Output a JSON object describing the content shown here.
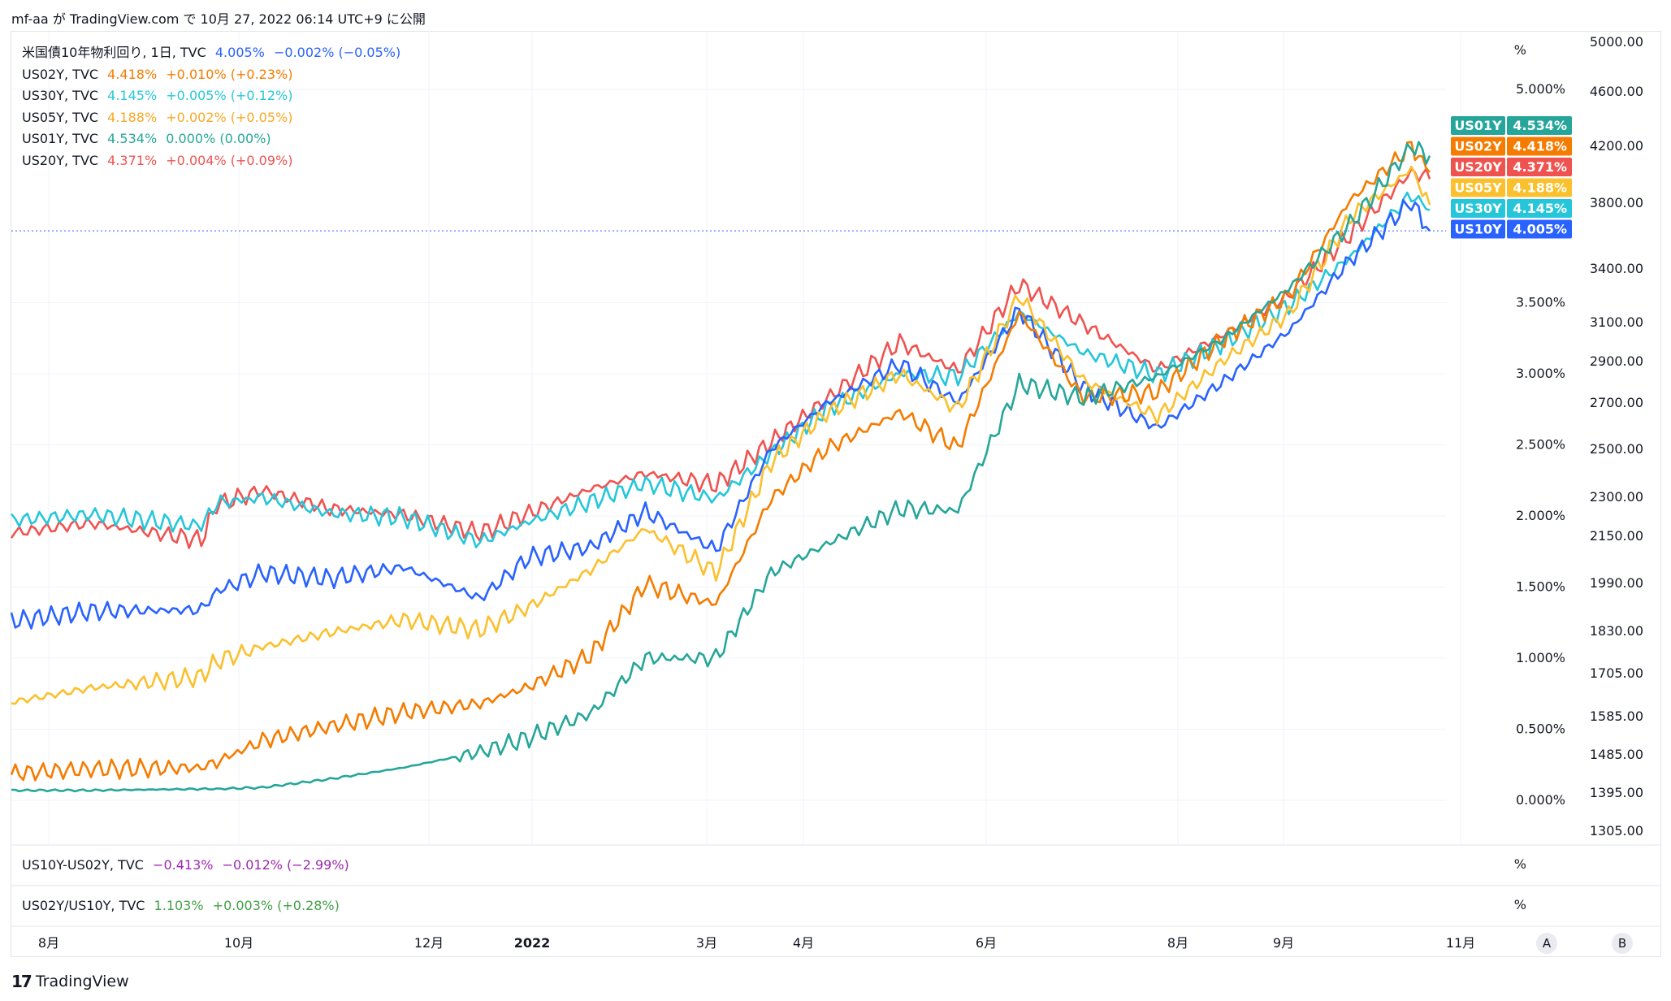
{
  "header": {
    "publish_line": "mf-aa が TradingView.com で 10月 27, 2022 06:14 UTC+9 に公開"
  },
  "legend": [
    {
      "name": "米国債10年物利回り, 1日, TVC",
      "value": "4.005%",
      "change": "−0.002% (−0.05%)",
      "color": "#2962ff"
    },
    {
      "name": "US02Y, TVC",
      "value": "4.418%",
      "change": "+0.010% (+0.23%)",
      "color": "#f57c00"
    },
    {
      "name": "US30Y, TVC",
      "value": "4.145%",
      "change": "+0.005% (+0.12%)",
      "color": "#26c6da"
    },
    {
      "name": "US05Y, TVC",
      "value": "4.188%",
      "change": "+0.002% (+0.05%)",
      "color": "#fbc02d"
    },
    {
      "name": "US01Y, TVC",
      "value": "4.534%",
      "change": "0.000% (0.00%)",
      "color": "#26a69a"
    },
    {
      "name": "US20Y, TVC",
      "value": "4.371%",
      "change": "+0.004% (+0.09%)",
      "color": "#ef5350"
    }
  ],
  "sub_panes": [
    {
      "name": "US10Y-US02Y, TVC",
      "value": "−0.413%",
      "change": "−0.012% (−2.99%)",
      "color": "#9c27b0",
      "unit": "%"
    },
    {
      "name": "US02Y/US10Y, TVC",
      "value": "1.103%",
      "change": "+0.003% (+0.28%)",
      "color": "#43a047",
      "unit": "%"
    }
  ],
  "axis": {
    "unit": "%",
    "btn_a": "A",
    "btn_b": "B",
    "logo": "TradingView",
    "logo_mark": "17"
  },
  "chart_data": {
    "type": "line",
    "x_ticks": [
      "8月",
      "10月",
      "12月",
      "2022",
      "3月",
      "4月",
      "6月",
      "8月",
      "9月",
      "11月"
    ],
    "pct_ticks": [
      {
        "label": "5.000%",
        "v": 5.0
      },
      {
        "label": "3.500%",
        "v": 3.5
      },
      {
        "label": "3.000%",
        "v": 3.0
      },
      {
        "label": "2.500%",
        "v": 2.5
      },
      {
        "label": "2.000%",
        "v": 2.0
      },
      {
        "label": "1.500%",
        "v": 1.5
      },
      {
        "label": "1.000%",
        "v": 1.0
      },
      {
        "label": "0.500%",
        "v": 0.5
      },
      {
        "label": "0.000%",
        "v": 0.0
      }
    ],
    "right_ticks": [
      "5000.00",
      "4600.00",
      "4200.00",
      "3800.00",
      "3400.00",
      "3100.00",
      "2900.00",
      "2700.00",
      "2500.00",
      "2300.00",
      "2150.00",
      "1990.00",
      "1830.00",
      "1705.00",
      "1585.00",
      "1485.00",
      "1395.00",
      "1305.00"
    ],
    "tags": [
      {
        "name": "US01Y",
        "value": "4.534%",
        "color": "#26a69a"
      },
      {
        "name": "US02Y",
        "value": "4.418%",
        "color": "#f57c00"
      },
      {
        "name": "US20Y",
        "value": "4.371%",
        "color": "#ef5350"
      },
      {
        "name": "US05Y",
        "value": "4.188%",
        "color": "#fbc02d"
      },
      {
        "name": "US30Y",
        "value": "4.145%",
        "color": "#26c6da"
      },
      {
        "name": "US10Y",
        "value": "4.005%",
        "color": "#2962ff"
      }
    ],
    "last_value_line": 4.005,
    "x_range": [
      "2021-07-20",
      "2022-10-26"
    ],
    "series": [
      {
        "name": "US20Y",
        "color": "#ef5350",
        "points": [
          [
            "2021-07-20",
            1.88
          ],
          [
            "2021-08-15",
            1.95
          ],
          [
            "2021-09-20",
            1.83
          ],
          [
            "2021-09-25",
            2.08
          ],
          [
            "2021-10-10",
            2.18
          ],
          [
            "2021-11-01",
            2.05
          ],
          [
            "2021-11-25",
            2.01
          ],
          [
            "2021-12-20",
            1.88
          ],
          [
            "2022-01-05",
            2.02
          ],
          [
            "2022-01-25",
            2.19
          ],
          [
            "2022-02-12",
            2.3
          ],
          [
            "2022-03-07",
            2.22
          ],
          [
            "2022-03-25",
            2.52
          ],
          [
            "2022-04-12",
            2.82
          ],
          [
            "2022-05-06",
            3.22
          ],
          [
            "2022-05-25",
            3.02
          ],
          [
            "2022-06-14",
            3.63
          ],
          [
            "2022-07-05",
            3.35
          ],
          [
            "2022-07-29",
            3.03
          ],
          [
            "2022-08-20",
            3.28
          ],
          [
            "2022-09-10",
            3.55
          ],
          [
            "2022-09-30",
            3.98
          ],
          [
            "2022-10-20",
            4.42
          ],
          [
            "2022-10-26",
            4.37
          ]
        ]
      },
      {
        "name": "US30Y",
        "color": "#26c6da",
        "points": [
          [
            "2021-07-20",
            1.97
          ],
          [
            "2021-08-15",
            2.01
          ],
          [
            "2021-09-20",
            1.93
          ],
          [
            "2021-09-25",
            2.09
          ],
          [
            "2021-10-10",
            2.13
          ],
          [
            "2021-11-01",
            2.02
          ],
          [
            "2021-11-25",
            1.99
          ],
          [
            "2021-12-20",
            1.82
          ],
          [
            "2022-01-05",
            1.96
          ],
          [
            "2022-01-25",
            2.1
          ],
          [
            "2022-02-12",
            2.23
          ],
          [
            "2022-03-07",
            2.12
          ],
          [
            "2022-03-25",
            2.44
          ],
          [
            "2022-04-12",
            2.75
          ],
          [
            "2022-05-06",
            3.0
          ],
          [
            "2022-05-25",
            2.98
          ],
          [
            "2022-06-14",
            3.43
          ],
          [
            "2022-07-05",
            3.15
          ],
          [
            "2022-07-29",
            2.99
          ],
          [
            "2022-08-20",
            3.22
          ],
          [
            "2022-09-10",
            3.48
          ],
          [
            "2022-09-30",
            3.82
          ],
          [
            "2022-10-20",
            4.26
          ],
          [
            "2022-10-26",
            4.15
          ]
        ]
      },
      {
        "name": "US10Y",
        "color": "#2962ff",
        "points": [
          [
            "2021-07-20",
            1.26
          ],
          [
            "2021-08-15",
            1.33
          ],
          [
            "2021-09-20",
            1.34
          ],
          [
            "2021-09-25",
            1.47
          ],
          [
            "2021-10-10",
            1.6
          ],
          [
            "2021-11-01",
            1.56
          ],
          [
            "2021-11-25",
            1.64
          ],
          [
            "2021-12-20",
            1.42
          ],
          [
            "2022-01-05",
            1.71
          ],
          [
            "2022-01-25",
            1.78
          ],
          [
            "2022-02-12",
            2.03
          ],
          [
            "2022-03-07",
            1.76
          ],
          [
            "2022-03-25",
            2.47
          ],
          [
            "2022-04-12",
            2.79
          ],
          [
            "2022-05-06",
            3.07
          ],
          [
            "2022-05-25",
            2.8
          ],
          [
            "2022-06-14",
            3.45
          ],
          [
            "2022-07-05",
            2.9
          ],
          [
            "2022-07-29",
            2.62
          ],
          [
            "2022-08-20",
            2.95
          ],
          [
            "2022-09-10",
            3.3
          ],
          [
            "2022-09-30",
            3.8
          ],
          [
            "2022-10-20",
            4.21
          ],
          [
            "2022-10-26",
            4.005
          ]
        ]
      },
      {
        "name": "US05Y",
        "color": "#fbc02d",
        "points": [
          [
            "2021-07-20",
            0.69
          ],
          [
            "2021-08-15",
            0.79
          ],
          [
            "2021-09-20",
            0.87
          ],
          [
            "2021-09-25",
            0.98
          ],
          [
            "2021-10-10",
            1.08
          ],
          [
            "2021-11-01",
            1.18
          ],
          [
            "2021-11-25",
            1.27
          ],
          [
            "2021-12-20",
            1.2
          ],
          [
            "2022-01-05",
            1.36
          ],
          [
            "2022-01-25",
            1.62
          ],
          [
            "2022-02-12",
            1.91
          ],
          [
            "2022-03-07",
            1.6
          ],
          [
            "2022-03-25",
            2.38
          ],
          [
            "2022-04-12",
            2.72
          ],
          [
            "2022-05-06",
            3.0
          ],
          [
            "2022-05-25",
            2.75
          ],
          [
            "2022-06-14",
            3.55
          ],
          [
            "2022-07-05",
            2.95
          ],
          [
            "2022-07-29",
            2.7
          ],
          [
            "2022-08-20",
            3.1
          ],
          [
            "2022-09-10",
            3.42
          ],
          [
            "2022-09-30",
            4.1
          ],
          [
            "2022-10-20",
            4.44
          ],
          [
            "2022-10-26",
            4.188
          ]
        ]
      },
      {
        "name": "US02Y",
        "color": "#f57c00",
        "points": [
          [
            "2021-07-20",
            0.19
          ],
          [
            "2021-08-15",
            0.22
          ],
          [
            "2021-09-20",
            0.23
          ],
          [
            "2021-09-25",
            0.27
          ],
          [
            "2021-10-10",
            0.42
          ],
          [
            "2021-11-01",
            0.52
          ],
          [
            "2021-11-25",
            0.62
          ],
          [
            "2021-12-20",
            0.68
          ],
          [
            "2022-01-05",
            0.8
          ],
          [
            "2022-01-25",
            1.02
          ],
          [
            "2022-02-12",
            1.52
          ],
          [
            "2022-03-07",
            1.38
          ],
          [
            "2022-03-25",
            2.12
          ],
          [
            "2022-04-12",
            2.47
          ],
          [
            "2022-05-06",
            2.73
          ],
          [
            "2022-05-25",
            2.48
          ],
          [
            "2022-06-14",
            3.43
          ],
          [
            "2022-07-05",
            2.83
          ],
          [
            "2022-07-29",
            2.87
          ],
          [
            "2022-08-20",
            3.25
          ],
          [
            "2022-09-10",
            3.55
          ],
          [
            "2022-09-30",
            4.22
          ],
          [
            "2022-10-20",
            4.6
          ],
          [
            "2022-10-26",
            4.418
          ]
        ]
      },
      {
        "name": "US01Y",
        "color": "#26a69a",
        "points": [
          [
            "2021-07-20",
            0.07
          ],
          [
            "2021-08-15",
            0.07
          ],
          [
            "2021-09-20",
            0.08
          ],
          [
            "2021-09-25",
            0.08
          ],
          [
            "2021-10-10",
            0.09
          ],
          [
            "2021-11-01",
            0.15
          ],
          [
            "2021-11-25",
            0.23
          ],
          [
            "2021-12-20",
            0.34
          ],
          [
            "2022-01-05",
            0.44
          ],
          [
            "2022-01-25",
            0.61
          ],
          [
            "2022-02-12",
            1.0
          ],
          [
            "2022-03-07",
            1.0
          ],
          [
            "2022-03-25",
            1.6
          ],
          [
            "2022-04-12",
            1.8
          ],
          [
            "2022-05-06",
            2.05
          ],
          [
            "2022-05-25",
            2.04
          ],
          [
            "2022-06-14",
            2.93
          ],
          [
            "2022-07-05",
            2.83
          ],
          [
            "2022-07-29",
            2.98
          ],
          [
            "2022-08-20",
            3.25
          ],
          [
            "2022-09-10",
            3.6
          ],
          [
            "2022-09-30",
            4.05
          ],
          [
            "2022-10-20",
            4.6
          ],
          [
            "2022-10-26",
            4.534
          ]
        ]
      }
    ]
  }
}
